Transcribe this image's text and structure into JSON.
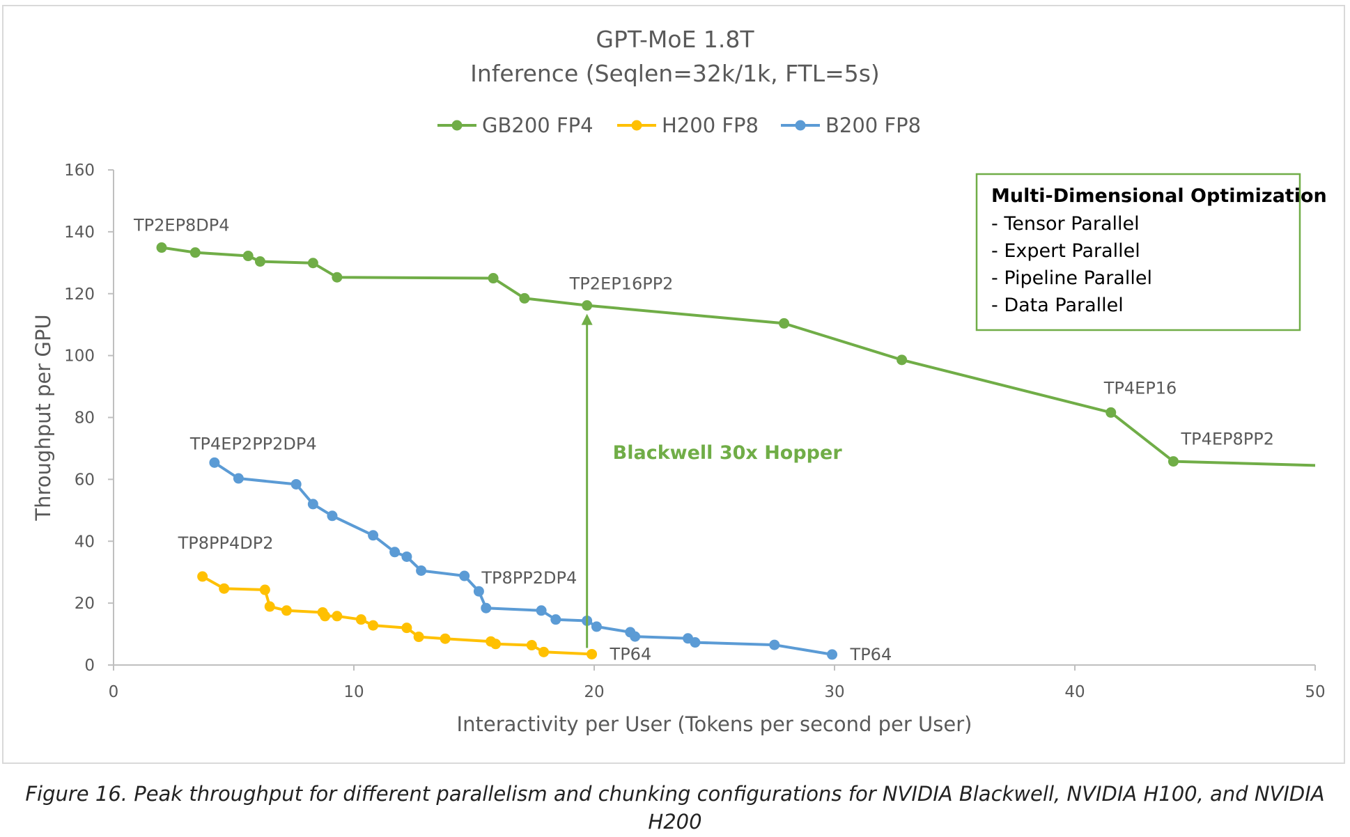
{
  "chart_data": {
    "type": "line",
    "title": "GPT-MoE 1.8T",
    "subtitle": "Inference (Seqlen=32k/1k, FTL=5s)",
    "xlabel": "Interactivity per User (Tokens per second per User)",
    "ylabel": "Throughput per GPU",
    "xlim": [
      0,
      50
    ],
    "ylim": [
      0,
      160
    ],
    "xticks": [
      "0",
      "10",
      "20",
      "30",
      "40",
      "50"
    ],
    "yticks": [
      "0",
      "20",
      "40",
      "60",
      "80",
      "100",
      "120",
      "140",
      "160"
    ],
    "grid": false,
    "legend_position": "top",
    "series": [
      {
        "name": "GB200 FP4",
        "color": "#70ad47",
        "points": [
          {
            "x": 2.0,
            "y": 134.9
          },
          {
            "x": 3.4,
            "y": 133.3
          },
          {
            "x": 5.6,
            "y": 132.2
          },
          {
            "x": 6.1,
            "y": 130.4
          },
          {
            "x": 8.3,
            "y": 129.9
          },
          {
            "x": 9.3,
            "y": 125.3
          },
          {
            "x": 15.8,
            "y": 125.0
          },
          {
            "x": 17.1,
            "y": 118.5
          },
          {
            "x": 19.7,
            "y": 116.2
          },
          {
            "x": 27.9,
            "y": 110.4
          },
          {
            "x": 32.8,
            "y": 98.6
          },
          {
            "x": 41.5,
            "y": 81.6
          },
          {
            "x": 44.1,
            "y": 65.8
          },
          {
            "x": 50.0,
            "y": 64.5,
            "marker": false
          }
        ]
      },
      {
        "name": "H200 FP8",
        "color": "#ffc000",
        "points": [
          {
            "x": 3.7,
            "y": 28.6
          },
          {
            "x": 4.6,
            "y": 24.7
          },
          {
            "x": 6.3,
            "y": 24.3
          },
          {
            "x": 6.5,
            "y": 18.9
          },
          {
            "x": 7.2,
            "y": 17.6
          },
          {
            "x": 8.7,
            "y": 17.0
          },
          {
            "x": 8.8,
            "y": 15.8
          },
          {
            "x": 9.3,
            "y": 15.8
          },
          {
            "x": 10.3,
            "y": 14.7
          },
          {
            "x": 10.8,
            "y": 12.8
          },
          {
            "x": 12.2,
            "y": 12.0
          },
          {
            "x": 12.7,
            "y": 9.1
          },
          {
            "x": 13.8,
            "y": 8.5
          },
          {
            "x": 15.7,
            "y": 7.6
          },
          {
            "x": 15.9,
            "y": 6.8
          },
          {
            "x": 17.4,
            "y": 6.4
          },
          {
            "x": 17.9,
            "y": 4.2
          },
          {
            "x": 19.9,
            "y": 3.5
          }
        ]
      },
      {
        "name": "B200 FP8",
        "color": "#5b9bd5",
        "points": [
          {
            "x": 4.2,
            "y": 65.4
          },
          {
            "x": 5.2,
            "y": 60.3
          },
          {
            "x": 7.6,
            "y": 58.4
          },
          {
            "x": 8.3,
            "y": 52.0
          },
          {
            "x": 9.1,
            "y": 48.2
          },
          {
            "x": 10.8,
            "y": 41.9
          },
          {
            "x": 11.7,
            "y": 36.5
          },
          {
            "x": 12.2,
            "y": 35.0
          },
          {
            "x": 12.8,
            "y": 30.5
          },
          {
            "x": 14.6,
            "y": 28.8
          },
          {
            "x": 15.2,
            "y": 23.8
          },
          {
            "x": 15.5,
            "y": 18.4
          },
          {
            "x": 17.8,
            "y": 17.6
          },
          {
            "x": 18.4,
            "y": 14.7
          },
          {
            "x": 19.7,
            "y": 14.3
          },
          {
            "x": 20.1,
            "y": 12.4
          },
          {
            "x": 21.5,
            "y": 10.6
          },
          {
            "x": 21.7,
            "y": 9.2
          },
          {
            "x": 23.9,
            "y": 8.6
          },
          {
            "x": 24.2,
            "y": 7.3
          },
          {
            "x": 27.5,
            "y": 6.5
          },
          {
            "x": 29.9,
            "y": 3.4
          }
        ]
      }
    ],
    "point_labels": [
      {
        "text": "TP2EP8DP4",
        "x": 2.0,
        "y": 134.9,
        "series": "GB200 FP4"
      },
      {
        "text": "TP2EP16PP2",
        "x": 19.7,
        "y": 116.2,
        "series": "GB200 FP4"
      },
      {
        "text": "TP4EP16",
        "x": 41.5,
        "y": 81.6,
        "series": "GB200 FP4"
      },
      {
        "text": "TP4EP8PP2",
        "x": 44.1,
        "y": 65.8,
        "series": "GB200 FP4"
      },
      {
        "text": "TP4EP2PP2DP4",
        "x": 4.2,
        "y": 65.4,
        "series": "B200 FP8"
      },
      {
        "text": "TP8PP2DP4",
        "x": 15.2,
        "y": 23.8,
        "series": "B200 FP8"
      },
      {
        "text": "TP64",
        "x": 29.9,
        "y": 3.4,
        "series": "B200 FP8"
      },
      {
        "text": "TP8PP4DP2",
        "x": 3.7,
        "y": 28.6,
        "series": "H200 FP8"
      },
      {
        "text": "TP64",
        "x": 19.9,
        "y": 3.5,
        "series": "H200 FP8"
      }
    ],
    "annotation_arrow": {
      "label": "Blackwell 30x Hopper",
      "color": "#70ad47",
      "x": 19.7,
      "y_from": 5.5,
      "y_to": 113.5
    },
    "optimization_box": {
      "title": "Multi-Dimensional Optimization",
      "items": [
        "- Tensor Parallel",
        "- Expert Parallel",
        "- Pipeline Parallel",
        "- Data Parallel"
      ],
      "border_color": "#70ad47"
    }
  },
  "caption": "Figure 16. Peak throughput for different parallelism and chunking configurations for NVIDIA Blackwell, NVIDIA H100, and NVIDIA H200"
}
